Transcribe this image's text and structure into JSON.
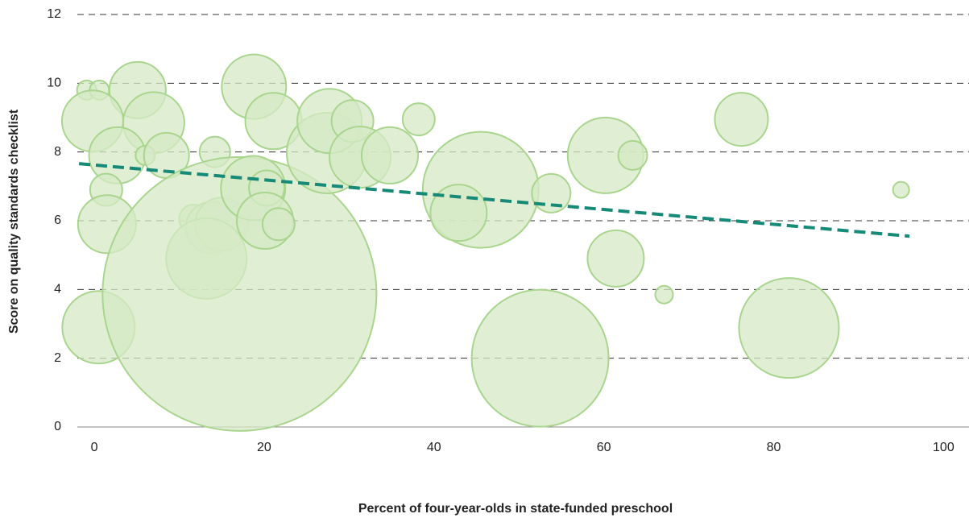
{
  "chart_data": {
    "type": "scatter",
    "x_label": "Percent of four-year-olds in state-funded preschool",
    "y_label": "Score on quality standards checklist",
    "xlim": [
      -2,
      103
    ],
    "ylim": [
      0,
      12
    ],
    "xticks": [
      0,
      20,
      40,
      60,
      80,
      100
    ],
    "yticks": [
      0,
      2,
      4,
      6,
      8,
      10,
      12
    ],
    "grid": true,
    "series": [
      {
        "color": "#d6e9c6",
        "x": [
          -0.9,
          0.6,
          5.1,
          -0.2,
          7,
          2.7,
          6,
          8.5,
          14.2,
          18.8,
          21.1,
          1.4,
          1.5,
          0.5,
          11.7,
          13.8,
          15,
          13.2,
          17.1,
          18.7,
          20.3,
          20.1,
          21.7,
          27.4,
          27.7,
          30.4,
          31.3,
          34.8,
          38.2,
          45.5,
          42.9,
          53.8,
          52.5,
          60.2,
          63.4,
          61.4,
          67.1,
          76.2,
          81.8,
          95
        ],
        "values": [
          9.8,
          9.8,
          9.8,
          8.9,
          8.85,
          7.9,
          7.9,
          7.9,
          8.0,
          9.9,
          8.9,
          6.9,
          5.9,
          2.9,
          6.05,
          5.8,
          5.9,
          4.9,
          3.87,
          6.95,
          6.95,
          6.0,
          5.9,
          7.97,
          8.9,
          8.9,
          7.85,
          7.9,
          8.95,
          6.9,
          6.23,
          6.8,
          2.0,
          7.9,
          7.9,
          4.9,
          3.85,
          8.95,
          2.88,
          6.9
        ],
        "sizes": [
          12,
          12,
          35,
          38,
          38,
          35,
          12,
          28,
          19,
          40,
          35,
          20,
          36,
          45,
          18,
          32,
          33,
          50,
          170,
          40,
          22,
          35,
          20,
          50,
          40,
          26,
          38,
          35,
          20,
          72,
          35,
          24,
          85,
          47,
          18,
          35,
          11,
          33,
          62,
          10
        ]
      }
    ],
    "trendline": {
      "color": "#168a77",
      "x": [
        -1.8,
        96
      ],
      "y": [
        7.66,
        5.55
      ]
    }
  }
}
